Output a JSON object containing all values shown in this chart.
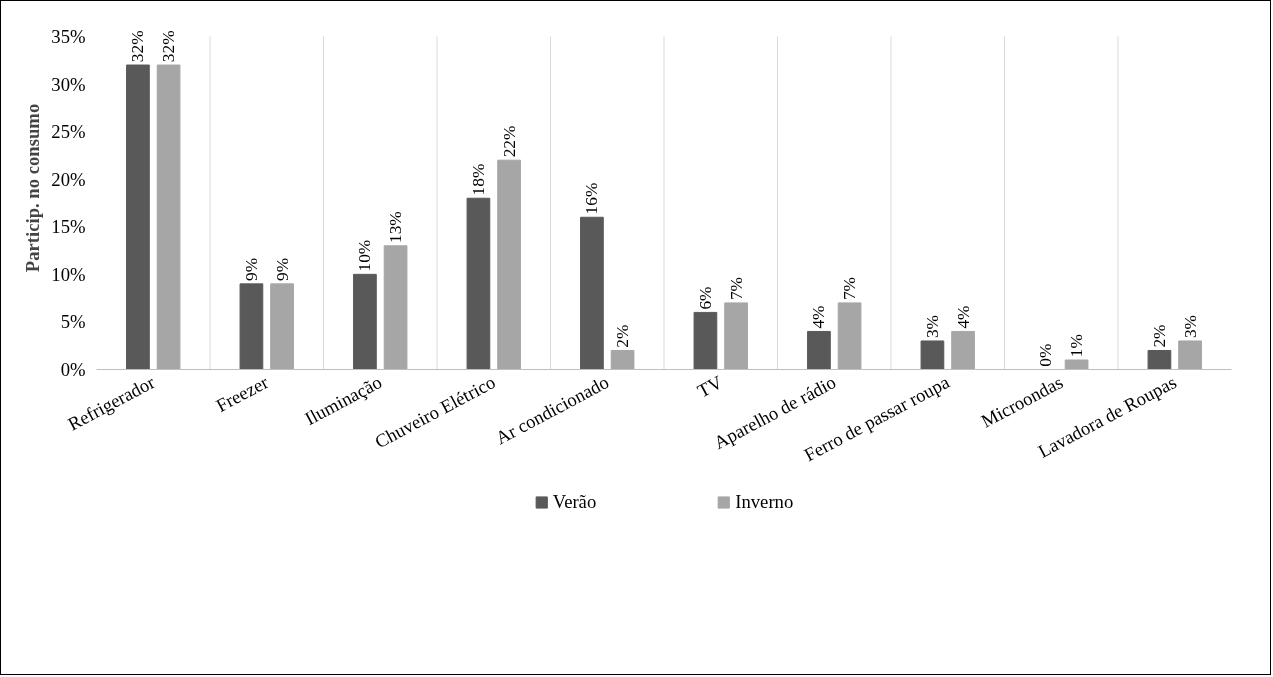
{
  "chart_data": {
    "type": "bar",
    "ylabel": "Particip. no consumo",
    "categories": [
      "Refrigerador",
      "Freezer",
      "Iluminação",
      "Chuveiro Elétrico",
      "Ar condicionado",
      "TV",
      "Aparelho de rádio",
      "Ferro de passar roupa",
      "Microondas",
      "Lavadora de Roupas"
    ],
    "series": [
      {
        "name": "Verão",
        "color": "#595959",
        "values": [
          32,
          9,
          10,
          18,
          16,
          6,
          4,
          3,
          0,
          2
        ],
        "value_labels": [
          "32%",
          "9%",
          "10%",
          "18%",
          "16%",
          "6%",
          "4%",
          "3%",
          "0%",
          "2%"
        ]
      },
      {
        "name": "Inverno",
        "color": "#a6a6a6",
        "values": [
          32,
          9,
          13,
          22,
          2,
          7,
          7,
          4,
          1,
          3
        ],
        "value_labels": [
          "32%",
          "9%",
          "13%",
          "22%",
          "2%",
          "7%",
          "7%",
          "4%",
          "1%",
          "3%"
        ]
      }
    ],
    "ylim": [
      0,
      35
    ],
    "yticks": [
      {
        "value": 0,
        "label": "0%"
      },
      {
        "value": 5,
        "label": "5%"
      },
      {
        "value": 10,
        "label": "10%"
      },
      {
        "value": 15,
        "label": "15%"
      },
      {
        "value": 20,
        "label": "20%"
      },
      {
        "value": 25,
        "label": "25%"
      },
      {
        "value": 30,
        "label": "30%"
      },
      {
        "value": 35,
        "label": "35%"
      }
    ],
    "grid": "x",
    "legend": "bottom"
  }
}
